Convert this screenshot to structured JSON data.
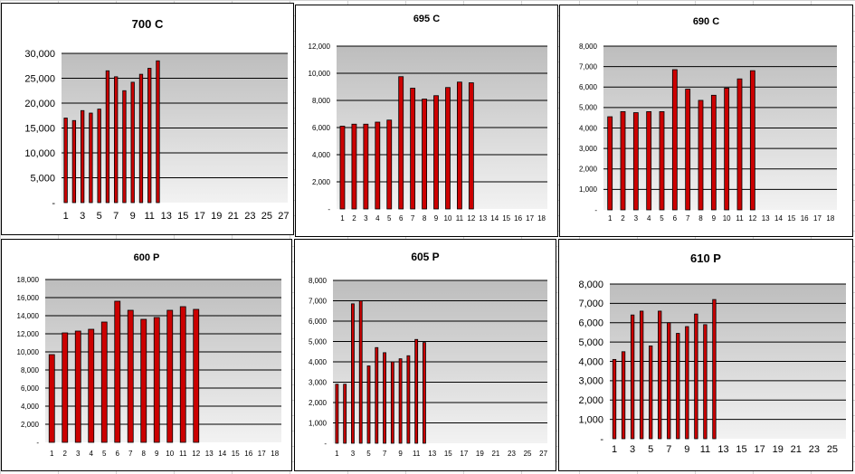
{
  "colors": {
    "bar_fill": "#cc0000",
    "bar_stroke": "#000000",
    "plot_gradient_top": "#bdbdbd",
    "plot_gradient_bottom": "#f2f2f2",
    "gridline": "#000000",
    "sheet_grid": "#d4d4d4"
  },
  "chart_data": [
    {
      "type": "bar",
      "title": "700 C",
      "categories": [
        1,
        2,
        3,
        4,
        5,
        6,
        7,
        8,
        9,
        10,
        11,
        12,
        13,
        14,
        15,
        16,
        17,
        18,
        19,
        20,
        21,
        22,
        23,
        24,
        25,
        26,
        27
      ],
      "x_tick_labels": [
        "1",
        "3",
        "5",
        "7",
        "9",
        "11",
        "13",
        "15",
        "17",
        "19",
        "21",
        "23",
        "25",
        "27"
      ],
      "values": [
        17000,
        16500,
        18500,
        18000,
        18800,
        26500,
        25300,
        22500,
        24200,
        25800,
        27000,
        28500,
        null,
        null,
        null,
        null,
        null,
        null,
        null,
        null,
        null,
        null,
        null,
        null,
        null,
        null,
        null
      ],
      "ylim": [
        0,
        30000
      ],
      "y_ticks": [
        "-",
        "5,000",
        "10,000",
        "15,000",
        "20,000",
        "25,000",
        "30,000"
      ],
      "grid": true
    },
    {
      "type": "bar",
      "title": "695 C",
      "categories": [
        1,
        2,
        3,
        4,
        5,
        6,
        7,
        8,
        9,
        10,
        11,
        12,
        13,
        14,
        15,
        16,
        17,
        18
      ],
      "x_tick_labels": [
        "1",
        "2",
        "3",
        "4",
        "5",
        "6",
        "7",
        "8",
        "9",
        "10",
        "11",
        "12",
        "13",
        "14",
        "15",
        "16",
        "17",
        "18"
      ],
      "values": [
        6100,
        6250,
        6250,
        6400,
        6550,
        9750,
        8900,
        8100,
        8350,
        8950,
        9350,
        9300,
        null,
        null,
        null,
        null,
        null,
        null
      ],
      "ylim": [
        0,
        12000
      ],
      "y_ticks": [
        "-",
        "2,000",
        "4,000",
        "6,000",
        "8,000",
        "10,000",
        "12,000"
      ],
      "grid": true
    },
    {
      "type": "bar",
      "title": "690 C",
      "categories": [
        1,
        2,
        3,
        4,
        5,
        6,
        7,
        8,
        9,
        10,
        11,
        12,
        13,
        14,
        15,
        16,
        17,
        18
      ],
      "x_tick_labels": [
        "1",
        "2",
        "3",
        "4",
        "5",
        "6",
        "7",
        "8",
        "9",
        "10",
        "11",
        "12",
        "13",
        "14",
        "15",
        "16",
        "17",
        "18"
      ],
      "values": [
        4550,
        4800,
        4750,
        4800,
        4800,
        6850,
        5900,
        5350,
        5600,
        5950,
        6400,
        6800,
        null,
        null,
        null,
        null,
        null,
        null
      ],
      "ylim": [
        0,
        8000
      ],
      "y_ticks": [
        "-",
        "1,000",
        "2,000",
        "3,000",
        "4,000",
        "5,000",
        "6,000",
        "7,000",
        "8,000"
      ],
      "grid": true
    },
    {
      "type": "bar",
      "title": "600 P",
      "categories": [
        1,
        2,
        3,
        4,
        5,
        6,
        7,
        8,
        9,
        10,
        11,
        12,
        13,
        14,
        15,
        16,
        17,
        18
      ],
      "x_tick_labels": [
        "1",
        "2",
        "3",
        "4",
        "5",
        "6",
        "7",
        "8",
        "9",
        "10",
        "11",
        "12",
        "13",
        "14",
        "15",
        "16",
        "17",
        "18"
      ],
      "values": [
        9700,
        12100,
        12300,
        12500,
        13300,
        15600,
        14600,
        13600,
        13800,
        14600,
        15000,
        14700,
        null,
        null,
        null,
        null,
        null,
        null
      ],
      "ylim": [
        0,
        18000
      ],
      "y_ticks": [
        "-",
        "2,000",
        "4,000",
        "6,000",
        "8,000",
        "10,000",
        "12,000",
        "14,000",
        "16,000",
        "18,000"
      ],
      "grid": true
    },
    {
      "type": "bar",
      "title": "605 P",
      "categories": [
        1,
        2,
        3,
        4,
        5,
        6,
        7,
        8,
        9,
        10,
        11,
        12,
        13,
        14,
        15,
        16,
        17,
        18,
        19,
        20,
        21,
        22,
        23,
        24,
        25,
        26,
        27
      ],
      "x_tick_labels": [
        "1",
        "3",
        "5",
        "7",
        "9",
        "11",
        "13",
        "15",
        "17",
        "19",
        "21",
        "23",
        "25",
        "27"
      ],
      "values": [
        2900,
        2900,
        6850,
        7000,
        3800,
        4700,
        4450,
        4000,
        4150,
        4300,
        5100,
        4950,
        null,
        null,
        null,
        null,
        null,
        null,
        null,
        null,
        null,
        null,
        null,
        null,
        null,
        null,
        null
      ],
      "ylim": [
        0,
        8000
      ],
      "y_ticks": [
        "-",
        "1,000",
        "2,000",
        "3,000",
        "4,000",
        "5,000",
        "6,000",
        "7,000",
        "8,000"
      ],
      "grid": true
    },
    {
      "type": "bar",
      "title": "610 P",
      "categories": [
        1,
        2,
        3,
        4,
        5,
        6,
        7,
        8,
        9,
        10,
        11,
        12,
        13,
        14,
        15,
        16,
        17,
        18,
        19,
        20,
        21,
        22,
        23,
        24,
        25,
        26
      ],
      "x_tick_labels": [
        "1",
        "3",
        "5",
        "7",
        "9",
        "11",
        "13",
        "15",
        "17",
        "19",
        "21",
        "23",
        "25"
      ],
      "values": [
        4100,
        4500,
        6400,
        6600,
        4800,
        6600,
        6000,
        5450,
        5800,
        6450,
        5900,
        7200,
        null,
        null,
        null,
        null,
        null,
        null,
        null,
        null,
        null,
        null,
        null,
        null,
        null,
        null
      ],
      "ylim": [
        0,
        8000
      ],
      "y_ticks": [
        "-",
        "1,000",
        "2,000",
        "3,000",
        "4,000",
        "5,000",
        "6,000",
        "7,000",
        "8,000"
      ],
      "grid": true
    }
  ]
}
